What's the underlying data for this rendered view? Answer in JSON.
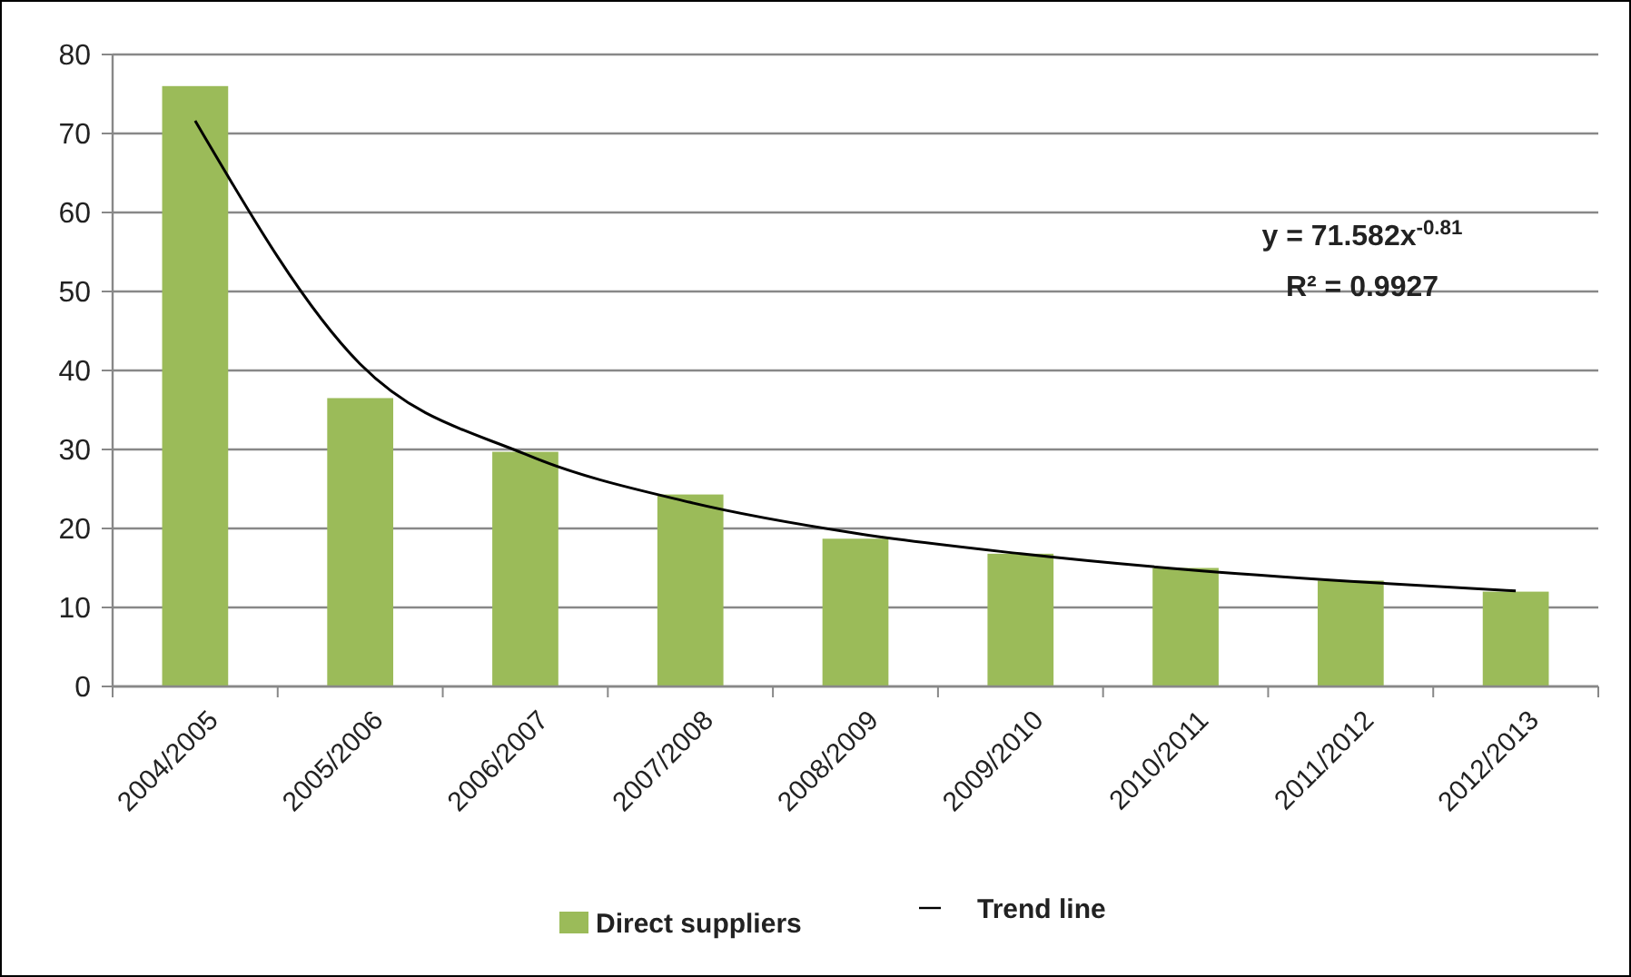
{
  "chart_data": {
    "type": "bar",
    "categories": [
      "2004/2005",
      "2005/2006",
      "2006/2007",
      "2007/2008",
      "2008/2009",
      "2009/2010",
      "2010/2011",
      "2011/2012",
      "2012/2013"
    ],
    "series": [
      {
        "name": "Direct suppliers",
        "color": "#9bbb59",
        "values": [
          76,
          36.5,
          29.7,
          24.3,
          18.7,
          16.8,
          15.0,
          13.4,
          12.0
        ]
      },
      {
        "name": "Trend line",
        "type": "line",
        "color": "#000000",
        "values": [
          71.6,
          40.8,
          29.4,
          23.3,
          19.4,
          16.8,
          14.8,
          13.3,
          12.1
        ]
      }
    ],
    "ylim": [
      0,
      80
    ],
    "yticks": [
      0,
      10,
      20,
      30,
      40,
      50,
      60,
      70,
      80
    ],
    "grid": "y",
    "legend": "bottom",
    "annotations": [
      "y = 71.582x$^{-0.81}$",
      "R² = 0.9927"
    ]
  }
}
